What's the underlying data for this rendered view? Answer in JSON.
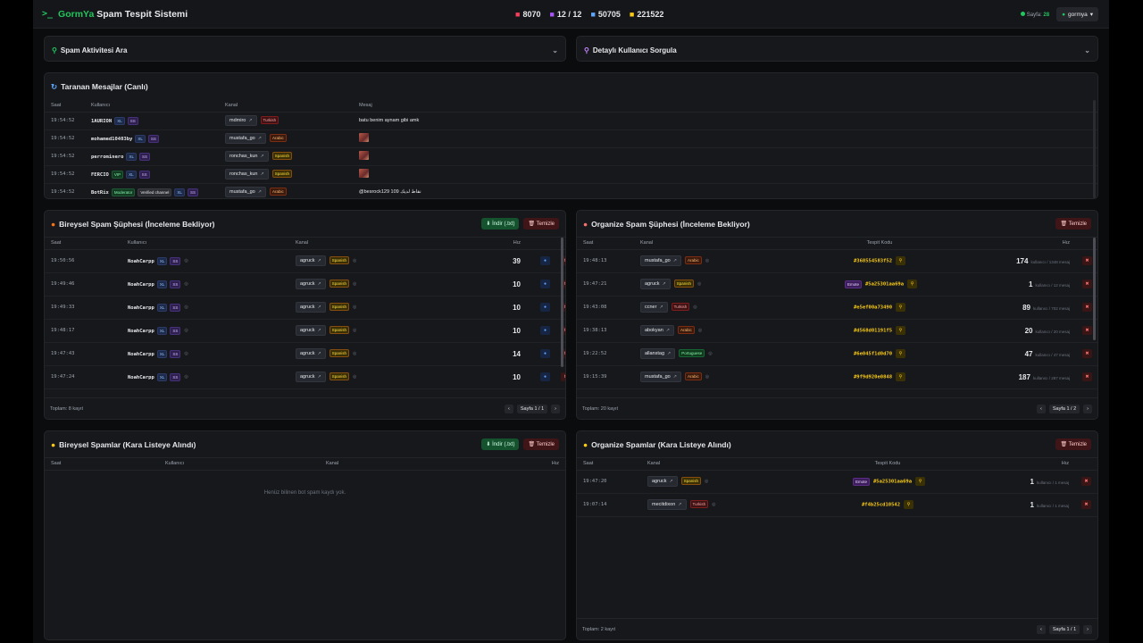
{
  "brand": {
    "prefix": "GormYa",
    "rest": " Spam Tespit Sistemi"
  },
  "stats": [
    {
      "icon": "video-icon",
      "value": "8070",
      "color": "#f43f5e"
    },
    {
      "icon": "bolt-icon",
      "value": "12 / 12",
      "color": "#a855f7"
    },
    {
      "icon": "users-icon",
      "value": "50705",
      "color": "#60a5fa"
    },
    {
      "icon": "message-icon",
      "value": "221522",
      "color": "#facc15"
    }
  ],
  "topright": {
    "page_label": "Sayfa:",
    "page_value": "28",
    "user": "gormya"
  },
  "search_panel": {
    "title": "Spam Aktivitesi Ara"
  },
  "user_panel": {
    "title": "Detaylı Kullanıcı Sorgula"
  },
  "live": {
    "title": "Taranan Mesajlar (Canlı)",
    "columns": [
      "Saat",
      "Kullanıcı",
      "Kanal",
      "Mesaj"
    ],
    "rows": [
      {
        "time": "19:54:52",
        "user": "1AURION",
        "badges": [
          "XL",
          "SS"
        ],
        "channel": "mdmiro",
        "lang": "Turkish",
        "message": "batu benim aynam gibi amk",
        "image": false
      },
      {
        "time": "19:54:52",
        "user": "mohamed10403by",
        "badges": [
          "XL",
          "SS"
        ],
        "channel": "mustafa_go",
        "lang": "Arabic",
        "message": "",
        "image": true
      },
      {
        "time": "19:54:52",
        "user": "perrominero",
        "badges": [
          "XL",
          "SS"
        ],
        "channel": "ronchas_kun",
        "lang": "Spanish",
        "message": "",
        "image": true
      },
      {
        "time": "19:54:52",
        "user": "FERCIO",
        "badges": [
          "VIP",
          "XL",
          "SS"
        ],
        "channel": "ronchas_kun",
        "lang": "Spanish",
        "message": "",
        "image": true
      },
      {
        "time": "19:54:52",
        "user": "BotRix",
        "badges": [
          "Moderator",
          "Verified channel",
          "XL",
          "SS"
        ],
        "channel": "mustafa_go",
        "lang": "Arabic",
        "message": "@besrock129 109 نقاط لديك",
        "image": false
      }
    ]
  },
  "ind_suspect": {
    "title": "Bireysel Spam Şüphesi (İnceleme Bekliyor)",
    "download": "İndir (.txt)",
    "clear": "Temizle",
    "columns": [
      "Saat",
      "Kullanıcı",
      "Kanal",
      "Hız"
    ],
    "rows": [
      {
        "time": "19:50:56",
        "user": "NoahCarpp",
        "channel": "agruck",
        "lang": "Spanish",
        "speed": "39"
      },
      {
        "time": "19:49:46",
        "user": "NoahCarpp",
        "channel": "agruck",
        "lang": "Spanish",
        "speed": "10"
      },
      {
        "time": "19:49:33",
        "user": "NoahCarpp",
        "channel": "agruck",
        "lang": "Spanish",
        "speed": "10"
      },
      {
        "time": "19:48:17",
        "user": "NoahCarpp",
        "channel": "agruck",
        "lang": "Spanish",
        "speed": "10"
      },
      {
        "time": "19:47:43",
        "user": "NoahCarpp",
        "channel": "agruck",
        "lang": "Spanish",
        "speed": "14"
      },
      {
        "time": "19:47:24",
        "user": "NoahCarpp",
        "channel": "agruck",
        "lang": "Spanish",
        "speed": "10"
      }
    ],
    "total": "Toplam: 8 kayıt",
    "page": "Sayfa 1 / 1"
  },
  "org_suspect": {
    "title": "Organize Spam Şüphesi (İnceleme Bekliyor)",
    "clear": "Temizle",
    "columns": [
      "Saat",
      "Kanal",
      "Tespit Kodu",
      "Hız"
    ],
    "rows": [
      {
        "time": "19:48:13",
        "channel": "mustafa_go",
        "lang": "Arabic",
        "emote": false,
        "code": "#368554583f52",
        "speed": "174",
        "sub": "kullanıcı / 1348 mesaj"
      },
      {
        "time": "19:47:21",
        "channel": "agruck",
        "lang": "Spanish",
        "emote": true,
        "code": "#5a25301aa69a",
        "speed": "1",
        "sub": "kullanıcı / 12 mesaj"
      },
      {
        "time": "19:43:08",
        "channel": "ccner",
        "lang": "Turkish",
        "emote": false,
        "code": "#e5ef00a73490",
        "speed": "89",
        "sub": "kullanıcı / 702 mesaj"
      },
      {
        "time": "19:38:13",
        "channel": "abokyan",
        "lang": "Arabic",
        "emote": false,
        "code": "#d568d01191f5",
        "speed": "20",
        "sub": "kullanıcı / 20 mesaj"
      },
      {
        "time": "19:22:52",
        "channel": "allanstag",
        "lang": "Portuguese",
        "emote": false,
        "code": "#6e045f1d0d70",
        "speed": "47",
        "sub": "kullanıcı / 47 mesaj"
      },
      {
        "time": "19:15:39",
        "channel": "mustafa_go",
        "lang": "Arabic",
        "emote": false,
        "code": "#9f9d920e0848",
        "speed": "187",
        "sub": "kullanıcı / 287 mesaj"
      }
    ],
    "total": "Toplam: 20 kayıt",
    "page": "Sayfa 1 / 2"
  },
  "ind_black": {
    "title": "Bireysel Spamlar (Kara Listeye Alındı)",
    "download": "İndir (.txt)",
    "clear": "Temizle",
    "columns": [
      "Saat",
      "Kullanıcı",
      "Kanal",
      "Hız"
    ],
    "empty": "Henüz bilinen bot spam kaydı yok."
  },
  "org_black": {
    "title": "Organize Spamlar (Kara Listeye Alındı)",
    "clear": "Temizle",
    "columns": [
      "Saat",
      "Kanal",
      "Tespit Kodu",
      "Hız"
    ],
    "rows": [
      {
        "time": "19:47:20",
        "channel": "agruck",
        "lang": "Spanish",
        "emote": true,
        "code": "#5a25301aa69a",
        "speed": "1",
        "sub": "kullanıcı / 1 mesaj"
      },
      {
        "time": "19:07:14",
        "channel": "mecitdixon",
        "lang": "Turkish",
        "emote": false,
        "code": "#f4b25cd10542",
        "speed": "1",
        "sub": "kullanıcı / 1 mesaj"
      }
    ],
    "total": "Toplam: 2 kayıt",
    "page": "Sayfa 1 / 1"
  },
  "labels": {
    "emote": "Emote",
    "prev": "‹",
    "next": "›"
  }
}
